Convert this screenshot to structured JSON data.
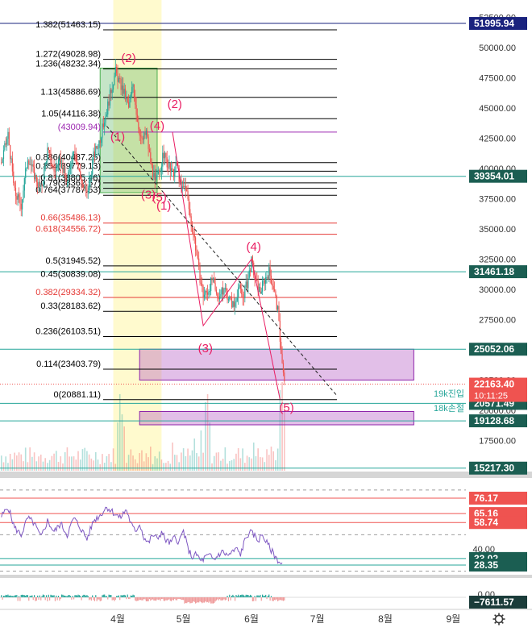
{
  "chart_data": {
    "type": "candlestick",
    "price_axis": {
      "ylim": [
        15000,
        53000
      ],
      "ticks": [
        17500,
        20000,
        22500,
        25000,
        27500,
        30000,
        32500,
        35000,
        37500,
        40000,
        42500,
        45000,
        47500,
        50000,
        52500
      ],
      "tick_labels": [
        "17500.00",
        "20000.00",
        "22500.00",
        "25000.00",
        "27500.00",
        "30000.00",
        "32500.00",
        "35000.00",
        "37500.00",
        "40000.00",
        "42500.00",
        "45000.00",
        "47500.00",
        "50000.00",
        "52500.00"
      ]
    },
    "time_axis": {
      "months": [
        {
          "label": "4월",
          "day": 0
        },
        {
          "label": "5월",
          "day": 30
        },
        {
          "label": "6월",
          "day": 61
        },
        {
          "label": "7월",
          "day": 91
        },
        {
          "label": "8월",
          "day": 122
        },
        {
          "label": "9월",
          "day": 153
        }
      ],
      "xlim": [
        -53,
        160
      ]
    },
    "fibonacci": [
      {
        "ratio": "1.382",
        "price": 51463.15,
        "label": "1.382(51463.15)",
        "color": "#000000"
      },
      {
        "ratio": "1.272",
        "price": 49028.98,
        "label": "1.272(49028.98)",
        "color": "#000000"
      },
      {
        "ratio": "1.236",
        "price": 48232.34,
        "label": "1.236(48232.34)",
        "color": "#000000"
      },
      {
        "ratio": "1.13",
        "price": 45886.69,
        "label": "1.13(45886.69)",
        "color": "#000000"
      },
      {
        "ratio": "1.05",
        "price": 44116.38,
        "label": "1.05(44116.38)",
        "color": "#000000"
      },
      {
        "ratio": "1",
        "price": 43009.94,
        "label": "(43009.94)",
        "color": "#9c27b0"
      },
      {
        "ratio": "0.886",
        "price": 40487,
        "label": "0.886(40487.25)",
        "color": "#000000"
      },
      {
        "ratio": "0.854",
        "price": 39779,
        "label": "0.854(39779.13)",
        "color": "#000000"
      },
      {
        "ratio": "0.81",
        "price": 38805,
        "label": "0.81(38805.46)",
        "color": "#000000"
      },
      {
        "ratio": "0.79",
        "price": 38362,
        "label": "0.79(38362.57)",
        "color": "#000000"
      },
      {
        "ratio": "0.764",
        "price": 37787,
        "label": "0.764(37787.53)",
        "color": "#000000"
      },
      {
        "ratio": "0.66",
        "price": 35486.13,
        "label": "0.66(35486.13)",
        "color": "#e53935"
      },
      {
        "ratio": "0.618",
        "price": 34556.72,
        "label": "0.618(34556.72)",
        "color": "#e53935"
      },
      {
        "ratio": "0.5",
        "price": 31945.52,
        "label": "0.5(31945.52)",
        "color": "#000000"
      },
      {
        "ratio": "0.45",
        "price": 30839.08,
        "label": "0.45(30839.08)",
        "color": "#000000"
      },
      {
        "ratio": "0.382",
        "price": 29334.32,
        "label": "0.382(29334.32)",
        "color": "#e53935"
      },
      {
        "ratio": "0.33",
        "price": 28183.62,
        "label": "0.33(28183.62)",
        "color": "#000000"
      },
      {
        "ratio": "0.236",
        "price": 26103.51,
        "label": "0.236(26103.51)",
        "color": "#000000"
      },
      {
        "ratio": "0.114",
        "price": 23403.79,
        "label": "0.114(23403.79)",
        "color": "#000000"
      },
      {
        "ratio": "0",
        "price": 20881.11,
        "label": "0(20881.11)",
        "color": "#000000"
      }
    ],
    "horizontal_lines": [
      {
        "price": 51995.94,
        "label": "51995.94",
        "color": "#1a237e",
        "bg": "#1a237e"
      },
      {
        "price": 39354.01,
        "label": "39354.01",
        "color": "#26a69a",
        "bg": "#1b5e52"
      },
      {
        "price": 31461.18,
        "label": "31461.18",
        "color": "#26a69a",
        "bg": "#1b5e52"
      },
      {
        "price": 25052.06,
        "label": "25052.06",
        "color": "#26a69a",
        "bg": "#1b5e52"
      },
      {
        "price": 20571.49,
        "label": "20571.49",
        "color": "#26a69a",
        "bg": "#1b5e52"
      },
      {
        "price": 19128.68,
        "label": "19128.68",
        "color": "#26a69a",
        "bg": "#1b5e52"
      },
      {
        "price": 15217.3,
        "label": "15217.30",
        "color": "#26a69a",
        "bg": "#1b5e52"
      }
    ],
    "last_price": {
      "price": 22163.4,
      "label": "22163.40",
      "countdown": "10:11:25",
      "color": "#ef5350"
    },
    "zone_labels": [
      "19k진입",
      "18k손절"
    ],
    "wave_labels": [
      {
        "text": "(2)",
        "day": 5,
        "price": 48800
      },
      {
        "text": "(1)",
        "day": 0,
        "price": 42300
      },
      {
        "text": "(4)",
        "day": 18,
        "price": 43200
      },
      {
        "text": "(2)",
        "day": 26,
        "price": 45000
      },
      {
        "text": "(3)",
        "day": 14,
        "price": 37500
      },
      {
        "text": "(5)",
        "day": 19,
        "price": 37300
      },
      {
        "text": "(1)",
        "day": 21,
        "price": 36600
      },
      {
        "text": "(4)",
        "day": 62,
        "price": 33200
      },
      {
        "text": "(3)",
        "day": 40,
        "price": 24800
      },
      {
        "text": "(5)",
        "day": 77,
        "price": 19900
      }
    ],
    "wave_path": [
      [
        25,
        43000
      ],
      [
        39,
        27000
      ],
      [
        61,
        32500
      ],
      [
        74,
        20900
      ]
    ],
    "trend_line": [
      [
        -5,
        43500
      ],
      [
        100,
        21200
      ]
    ],
    "boxes": [
      {
        "x0": -8,
        "x1": 18,
        "y0": 38000,
        "y1": 48300,
        "fill": "rgba(76,175,80,0.32)",
        "stroke": "#4caf50"
      },
      {
        "x0": 10,
        "x1": 135,
        "y0": 22500,
        "y1": 25052,
        "fill": "rgba(171,71,188,0.35)",
        "stroke": "#8e24aa"
      },
      {
        "x0": 10,
        "x1": 135,
        "y0": 18800,
        "y1": 19900,
        "fill": "rgba(171,71,188,0.35)",
        "stroke": "#8e24aa"
      }
    ],
    "vertical_band": {
      "x0": -2,
      "x1": 20,
      "fill": "rgba(255,235,59,0.25)"
    },
    "candles_anchors": [
      [
        -53,
        40500
      ],
      [
        -50,
        42800
      ],
      [
        -47,
        38000
      ],
      [
        -44,
        37000
      ],
      [
        -41,
        41000
      ],
      [
        -38,
        39500
      ],
      [
        -35,
        38200
      ],
      [
        -32,
        41500
      ],
      [
        -29,
        39800
      ],
      [
        -26,
        40500
      ],
      [
        -23,
        38800
      ],
      [
        -20,
        41800
      ],
      [
        -17,
        39200
      ],
      [
        -14,
        37800
      ],
      [
        -11,
        41000
      ],
      [
        -8,
        42500
      ],
      [
        -5,
        44800
      ],
      [
        -3,
        46500
      ],
      [
        -1,
        48000
      ],
      [
        1,
        47000
      ],
      [
        3,
        46200
      ],
      [
        5,
        45000
      ],
      [
        7,
        47000
      ],
      [
        9,
        44000
      ],
      [
        11,
        42200
      ],
      [
        13,
        43000
      ],
      [
        15,
        40500
      ],
      [
        17,
        38800
      ],
      [
        19,
        39800
      ],
      [
        21,
        41200
      ],
      [
        23,
        40200
      ],
      [
        25,
        39500
      ],
      [
        27,
        40300
      ],
      [
        29,
        38200
      ],
      [
        31,
        38600
      ],
      [
        33,
        36000
      ],
      [
        35,
        34200
      ],
      [
        37,
        31500
      ],
      [
        39,
        29500
      ],
      [
        41,
        29800
      ],
      [
        43,
        30800
      ],
      [
        45,
        29500
      ],
      [
        47,
        29600
      ],
      [
        49,
        30000
      ],
      [
        51,
        29200
      ],
      [
        53,
        28600
      ],
      [
        55,
        30200
      ],
      [
        57,
        29400
      ],
      [
        59,
        30500
      ],
      [
        61,
        32300
      ],
      [
        63,
        30500
      ],
      [
        65,
        29800
      ],
      [
        67,
        30800
      ],
      [
        69,
        31500
      ],
      [
        71,
        30200
      ],
      [
        73,
        28200
      ],
      [
        74,
        26000
      ],
      [
        75,
        23800
      ],
      [
        76,
        22163
      ]
    ],
    "rsi": {
      "ylim": [
        22,
        90
      ],
      "levels": [
        {
          "value": 76.17,
          "label": "76.17",
          "bg": "#ef5350",
          "line": "#ef5350"
        },
        {
          "value": 65.16,
          "label": "65.16",
          "bg": "#ef5350",
          "line": "#ef5350"
        },
        {
          "value": 58.74,
          "label": "58.74",
          "bg": "#ef5350",
          "line": "#ef5350"
        },
        {
          "value": 33.02,
          "label": "33.02",
          "bg": "#1b5e52",
          "line": "#26a69a"
        },
        {
          "value": 28.35,
          "label": "28.35",
          "bg": "#1b5e52",
          "line": "#26a69a"
        }
      ],
      "ticks": [
        {
          "value": 40,
          "label": "40.00"
        }
      ],
      "anchors": [
        [
          -53,
          63
        ],
        [
          -50,
          70
        ],
        [
          -47,
          55
        ],
        [
          -44,
          50
        ],
        [
          -41,
          62
        ],
        [
          -38,
          58
        ],
        [
          -35,
          48
        ],
        [
          -32,
          60
        ],
        [
          -29,
          52
        ],
        [
          -26,
          58
        ],
        [
          -23,
          50
        ],
        [
          -20,
          62
        ],
        [
          -17,
          55
        ],
        [
          -14,
          47
        ],
        [
          -11,
          60
        ],
        [
          -8,
          64
        ],
        [
          -5,
          70
        ],
        [
          -2,
          66
        ],
        [
          1,
          62
        ],
        [
          4,
          68
        ],
        [
          6,
          58
        ],
        [
          8,
          52
        ],
        [
          10,
          58
        ],
        [
          12,
          48
        ],
        [
          14,
          44
        ],
        [
          16,
          50
        ],
        [
          18,
          47
        ],
        [
          20,
          52
        ],
        [
          22,
          46
        ],
        [
          24,
          44
        ],
        [
          26,
          48
        ],
        [
          28,
          45
        ],
        [
          30,
          53
        ],
        [
          32,
          40
        ],
        [
          34,
          34
        ],
        [
          36,
          36
        ],
        [
          38,
          31
        ],
        [
          40,
          34
        ],
        [
          42,
          35
        ],
        [
          44,
          32
        ],
        [
          46,
          36
        ],
        [
          48,
          38
        ],
        [
          50,
          35
        ],
        [
          52,
          37
        ],
        [
          54,
          40
        ],
        [
          56,
          36
        ],
        [
          58,
          46
        ],
        [
          60,
          52
        ],
        [
          62,
          50
        ],
        [
          64,
          46
        ],
        [
          66,
          50
        ],
        [
          68,
          44
        ],
        [
          70,
          39
        ],
        [
          72,
          34
        ],
        [
          74,
          30
        ],
        [
          75,
          29
        ]
      ],
      "color": "#7e57c2"
    },
    "macd": {
      "ticks": [
        {
          "value": 0,
          "label": "0.00"
        }
      ],
      "last": {
        "label": "−7611.57",
        "bg": "#1b3c3a"
      }
    },
    "volume_spikes": [
      [
        -53,
        8
      ],
      [
        -45,
        12
      ],
      [
        -30,
        10
      ],
      [
        -20,
        14
      ],
      [
        -10,
        9
      ],
      [
        0,
        60
      ],
      [
        1,
        95
      ],
      [
        2,
        70
      ],
      [
        3,
        55
      ],
      [
        10,
        22
      ],
      [
        15,
        30
      ],
      [
        25,
        35
      ],
      [
        35,
        40
      ],
      [
        38,
        50
      ],
      [
        40,
        85
      ],
      [
        41,
        95
      ],
      [
        42,
        60
      ],
      [
        45,
        20
      ],
      [
        55,
        28
      ],
      [
        62,
        35
      ],
      [
        70,
        30
      ],
      [
        74,
        100
      ],
      [
        75,
        110
      ],
      [
        76,
        80
      ]
    ]
  }
}
